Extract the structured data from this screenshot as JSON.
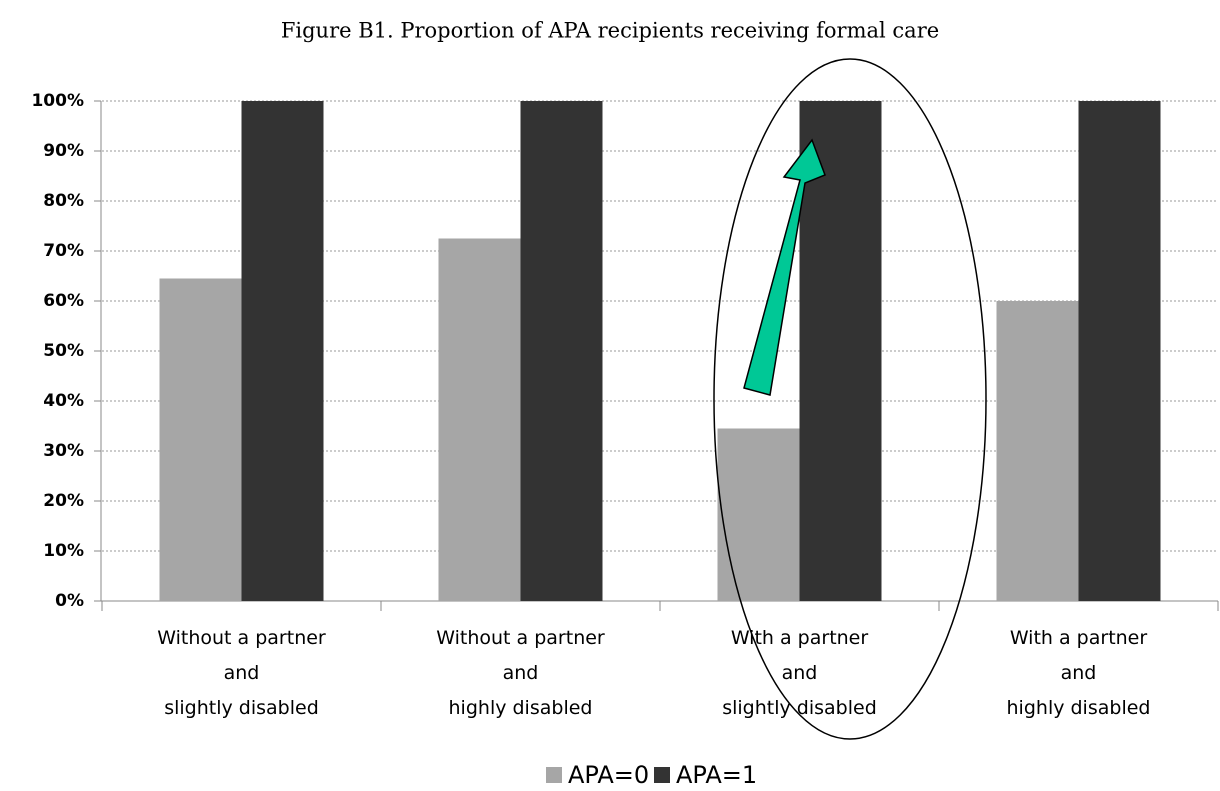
{
  "chart_data": {
    "type": "bar",
    "title": "Figure B1. Proportion of APA recipients receiving formal care",
    "categories": [
      [
        "Without a partner",
        "and",
        "slightly disabled"
      ],
      [
        "Without a partner",
        "and",
        "highly disabled"
      ],
      [
        "With a partner",
        "and",
        "slightly disabled"
      ],
      [
        "With a partner",
        "and",
        "highly disabled"
      ]
    ],
    "series": [
      {
        "name": "APA=0",
        "color": "#a6a6a6",
        "values": [
          64.5,
          72.5,
          34.5,
          60
        ]
      },
      {
        "name": "APA=1",
        "color": "#333333",
        "values": [
          100,
          100,
          100,
          100
        ]
      }
    ],
    "ylim": [
      0,
      100
    ],
    "yticks": [
      {
        "value": 0,
        "label": "0%"
      },
      {
        "value": 10,
        "label": "10%"
      },
      {
        "value": 20,
        "label": "20%"
      },
      {
        "value": 30,
        "label": "30%"
      },
      {
        "value": 40,
        "label": "40%"
      },
      {
        "value": 50,
        "label": "50%"
      },
      {
        "value": 60,
        "label": "60%"
      },
      {
        "value": 70,
        "label": "70%"
      },
      {
        "value": 80,
        "label": "80%"
      },
      {
        "value": 90,
        "label": "90%"
      },
      {
        "value": 100,
        "label": "100%"
      }
    ],
    "grid": true,
    "legend": "bottom"
  }
}
